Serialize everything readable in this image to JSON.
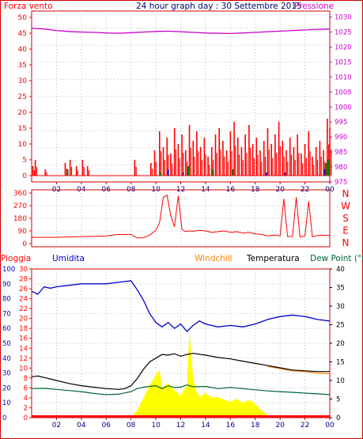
{
  "title": "24 hour graph day : 30 Settembre 2015",
  "colors": {
    "wind": "#ff0000",
    "gust_green": "#008000",
    "gust_blue": "#0000cc",
    "pressure": "#cc00cc",
    "rain": "#ff0000",
    "humidity": "#0000cc",
    "windchill": "#ff8000",
    "temperature": "#000000",
    "dewpoint": "#006633",
    "rain_fill": "#ffff00",
    "border": "#cc0000"
  },
  "x_ticks": [
    "02",
    "04",
    "06",
    "08",
    "10",
    "12",
    "14",
    "16",
    "18",
    "20",
    "22",
    "00"
  ],
  "chart_data": [
    {
      "type": "line",
      "labels": {
        "left": "Forza vento",
        "right": "Pressione"
      },
      "yleft": {
        "ticks": [
          "0",
          "5",
          "10",
          "15",
          "20",
          "25",
          "30",
          "35",
          "40",
          "45",
          "50"
        ],
        "range": [
          0,
          50
        ]
      },
      "yright": {
        "ticks": [
          "975",
          "980",
          "985",
          "990",
          "995",
          "1000",
          "1005",
          "1010",
          "1015",
          "1020",
          "1025",
          "1030"
        ],
        "range": [
          975,
          1032
        ]
      },
      "x_range_hours": [
        0,
        24
      ],
      "series": {
        "pressure": [
          [
            0,
            1026.3
          ],
          [
            1,
            1026.0
          ],
          [
            2,
            1025.5
          ],
          [
            3,
            1025.2
          ],
          [
            4,
            1025.0
          ],
          [
            5,
            1024.9
          ],
          [
            6,
            1024.7
          ],
          [
            7,
            1024.6
          ],
          [
            8,
            1024.8
          ],
          [
            9,
            1025.0
          ],
          [
            10,
            1025.2
          ],
          [
            11,
            1025.3
          ],
          [
            12,
            1025.1
          ],
          [
            13,
            1024.9
          ],
          [
            14,
            1024.7
          ],
          [
            15,
            1024.6
          ],
          [
            16,
            1024.5
          ],
          [
            17,
            1024.7
          ],
          [
            18,
            1024.9
          ],
          [
            19,
            1025.1
          ],
          [
            20,
            1025.3
          ],
          [
            21,
            1025.5
          ],
          [
            22,
            1025.7
          ],
          [
            23,
            1025.9
          ],
          [
            24,
            1026.0
          ]
        ],
        "wind_spikes": [
          [
            0.1,
            3
          ],
          [
            0.3,
            5
          ],
          [
            1.1,
            2
          ],
          [
            2.7,
            4
          ],
          [
            3.1,
            5
          ],
          [
            3.6,
            3
          ],
          [
            4.1,
            5
          ],
          [
            4.5,
            3
          ],
          [
            8.3,
            5
          ],
          [
            9.6,
            4
          ],
          [
            9.9,
            8
          ],
          [
            10.3,
            14
          ],
          [
            10.6,
            9
          ],
          [
            10.9,
            12
          ],
          [
            11.2,
            7
          ],
          [
            11.5,
            15
          ],
          [
            11.8,
            10
          ],
          [
            12.1,
            13
          ],
          [
            12.4,
            8
          ],
          [
            12.7,
            16
          ],
          [
            13.0,
            11
          ],
          [
            13.3,
            14
          ],
          [
            13.6,
            9
          ],
          [
            13.9,
            12
          ],
          [
            14.2,
            6
          ],
          [
            14.5,
            9
          ],
          [
            14.8,
            13
          ],
          [
            15.1,
            15
          ],
          [
            15.4,
            11
          ],
          [
            15.7,
            8
          ],
          [
            16.0,
            14
          ],
          [
            16.3,
            17
          ],
          [
            16.6,
            12
          ],
          [
            16.9,
            9
          ],
          [
            17.2,
            13
          ],
          [
            17.5,
            16
          ],
          [
            17.8,
            10
          ],
          [
            18.1,
            12
          ],
          [
            18.4,
            8
          ],
          [
            18.7,
            11
          ],
          [
            19.0,
            15
          ],
          [
            19.3,
            10
          ],
          [
            19.6,
            13
          ],
          [
            19.9,
            17
          ],
          [
            20.2,
            11
          ],
          [
            20.5,
            8
          ],
          [
            20.8,
            12
          ],
          [
            21.1,
            9
          ],
          [
            21.4,
            13
          ],
          [
            21.7,
            7
          ],
          [
            22.0,
            10
          ],
          [
            22.3,
            14
          ],
          [
            22.6,
            6
          ],
          [
            22.9,
            9
          ],
          [
            23.2,
            11
          ],
          [
            23.5,
            8
          ],
          [
            23.8,
            18
          ],
          [
            24.0,
            15
          ]
        ],
        "gust_green": [
          [
            2.9,
            2
          ],
          [
            10.4,
            1
          ],
          [
            12.6,
            3
          ],
          [
            14.6,
            2
          ],
          [
            16.2,
            2
          ],
          [
            23.7,
            4
          ],
          [
            23.9,
            5
          ]
        ],
        "gust_blue": [
          [
            11.0,
            2
          ],
          [
            12.2,
            1
          ],
          [
            18.9,
            1
          ],
          [
            20.4,
            1
          ],
          [
            23.6,
            2
          ]
        ]
      }
    },
    {
      "type": "line",
      "labels": {
        "directions": [
          "N",
          "W",
          "S",
          "E",
          "N"
        ]
      },
      "yleft": {
        "ticks": [
          "0",
          "90",
          "180",
          "270",
          "360"
        ],
        "range": [
          0,
          360
        ]
      },
      "x_range_hours": [
        0,
        24
      ],
      "series": {
        "direction": [
          [
            0,
            45
          ],
          [
            1,
            45
          ],
          [
            2,
            45
          ],
          [
            3,
            48
          ],
          [
            4,
            50
          ],
          [
            5,
            52
          ],
          [
            6,
            55
          ],
          [
            7,
            65
          ],
          [
            8,
            65
          ],
          [
            8.5,
            40
          ],
          [
            9,
            42
          ],
          [
            9.5,
            60
          ],
          [
            10,
            95
          ],
          [
            10.3,
            150
          ],
          [
            10.6,
            330
          ],
          [
            10.9,
            345
          ],
          [
            11.2,
            200
          ],
          [
            11.5,
            120
          ],
          [
            11.8,
            340
          ],
          [
            12.1,
            100
          ],
          [
            12.4,
            85
          ],
          [
            12.7,
            90
          ],
          [
            13,
            88
          ],
          [
            13.5,
            95
          ],
          [
            14,
            90
          ],
          [
            14.5,
            80
          ],
          [
            15,
            85
          ],
          [
            15.5,
            90
          ],
          [
            16,
            80
          ],
          [
            16.5,
            85
          ],
          [
            17,
            75
          ],
          [
            17.5,
            80
          ],
          [
            18,
            70
          ],
          [
            18.5,
            65
          ],
          [
            19,
            55
          ],
          [
            19.5,
            60
          ],
          [
            20,
            55
          ],
          [
            20.3,
            320
          ],
          [
            20.6,
            50
          ],
          [
            21,
            52
          ],
          [
            21.3,
            330
          ],
          [
            21.6,
            48
          ],
          [
            22,
            55
          ],
          [
            22.3,
            300
          ],
          [
            22.6,
            50
          ],
          [
            23,
            58
          ],
          [
            23.5,
            60
          ],
          [
            24,
            58
          ]
        ]
      }
    },
    {
      "type": "area",
      "labels": {
        "rain": "Pioggia",
        "humidity": "Umidita",
        "windchill": "Windchill",
        "temperature": "Temperatura",
        "dewpoint": "Dew Point (°C"
      },
      "y_humidity": {
        "ticks": [
          "0",
          "10",
          "20",
          "30",
          "40",
          "50",
          "60",
          "70",
          "80",
          "90",
          "100"
        ],
        "range": [
          0,
          100
        ]
      },
      "y_rain": {
        "ticks": [
          "0",
          "2",
          "4",
          "6",
          "8",
          "10",
          "12",
          "14",
          "16",
          "18",
          "20",
          "22",
          "24",
          "26",
          "28",
          "30"
        ],
        "range": [
          0,
          30
        ]
      },
      "y_temp": {
        "ticks": [
          "0",
          "5",
          "10",
          "15",
          "20",
          "25",
          "30",
          "35",
          "40"
        ],
        "range": [
          0,
          40
        ]
      },
      "x_range_hours": [
        0,
        24
      ],
      "series": {
        "humidity": [
          [
            0,
            85
          ],
          [
            0.5,
            83
          ],
          [
            1,
            88
          ],
          [
            1.5,
            87
          ],
          [
            2,
            88
          ],
          [
            3,
            89
          ],
          [
            4,
            90
          ],
          [
            5,
            90
          ],
          [
            6,
            90
          ],
          [
            7,
            91
          ],
          [
            8,
            92
          ],
          [
            8.5,
            86
          ],
          [
            9,
            79
          ],
          [
            9.5,
            70
          ],
          [
            10,
            64
          ],
          [
            10.5,
            61
          ],
          [
            11,
            64
          ],
          [
            11.5,
            60
          ],
          [
            12,
            63
          ],
          [
            12.5,
            58
          ],
          [
            13,
            62
          ],
          [
            13.5,
            65
          ],
          [
            14,
            63
          ],
          [
            15,
            61
          ],
          [
            16,
            62
          ],
          [
            17,
            61
          ],
          [
            18,
            63
          ],
          [
            19,
            66
          ],
          [
            20,
            68
          ],
          [
            21,
            69
          ],
          [
            22,
            68
          ],
          [
            23,
            66
          ],
          [
            24,
            65
          ]
        ],
        "temperature": [
          [
            0,
            11
          ],
          [
            0.5,
            11.2
          ],
          [
            1,
            10.8
          ],
          [
            2,
            10
          ],
          [
            3,
            9.2
          ],
          [
            4,
            8.6
          ],
          [
            5,
            8.2
          ],
          [
            6,
            7.8
          ],
          [
            7,
            7.6
          ],
          [
            7.5,
            7.8
          ],
          [
            8,
            8.6
          ],
          [
            8.5,
            10.5
          ],
          [
            9,
            13
          ],
          [
            9.5,
            15
          ],
          [
            10,
            16
          ],
          [
            10.5,
            17
          ],
          [
            11,
            16.8
          ],
          [
            11.5,
            17.2
          ],
          [
            12,
            16.5
          ],
          [
            12.5,
            17
          ],
          [
            13,
            17.3
          ],
          [
            14,
            16.8
          ],
          [
            15,
            16.2
          ],
          [
            16,
            15.8
          ],
          [
            17,
            15.2
          ],
          [
            18,
            14.6
          ],
          [
            19,
            14
          ],
          [
            20,
            13.4
          ],
          [
            21,
            12.8
          ],
          [
            22,
            12.6
          ],
          [
            23,
            12.4
          ],
          [
            24,
            12.4
          ]
        ],
        "windchill": [
          [
            19,
            13.8
          ],
          [
            20,
            13.2
          ],
          [
            21,
            12.6
          ],
          [
            22,
            12.4
          ],
          [
            23,
            12.0
          ],
          [
            24,
            11.8
          ]
        ],
        "dewpoint": [
          [
            0,
            7.8
          ],
          [
            1,
            7.9
          ],
          [
            2,
            7.6
          ],
          [
            3,
            7.3
          ],
          [
            4,
            7.0
          ],
          [
            5,
            6.5
          ],
          [
            6,
            6.2
          ],
          [
            7,
            6.3
          ],
          [
            8,
            7
          ],
          [
            8.5,
            7.8
          ],
          [
            9,
            8.2
          ],
          [
            9.5,
            8.4
          ],
          [
            10,
            8.6
          ],
          [
            10.5,
            7.8
          ],
          [
            11,
            8.6
          ],
          [
            11.5,
            8.1
          ],
          [
            12,
            8.2
          ],
          [
            12.5,
            8.8
          ],
          [
            13,
            8.3
          ],
          [
            14,
            8.4
          ],
          [
            15,
            7.8
          ],
          [
            16,
            8.1
          ],
          [
            17,
            7.8
          ],
          [
            18,
            7.5
          ],
          [
            19,
            7.2
          ],
          [
            20,
            7
          ],
          [
            21,
            6.8
          ],
          [
            22,
            6.6
          ],
          [
            23,
            6.4
          ],
          [
            24,
            6.2
          ]
        ],
        "rain_fill": [
          [
            8,
            0
          ],
          [
            8.5,
            1.5
          ],
          [
            9,
            4
          ],
          [
            9.5,
            6.5
          ],
          [
            10,
            8.6
          ],
          [
            10.3,
            9.6
          ],
          [
            10.5,
            6
          ],
          [
            11,
            7
          ],
          [
            11.5,
            5.5
          ],
          [
            12,
            4.5
          ],
          [
            12.5,
            6.5
          ],
          [
            12.7,
            17.5
          ],
          [
            13,
            8
          ],
          [
            13.3,
            5
          ],
          [
            13.6,
            4.2
          ],
          [
            14,
            5
          ],
          [
            14.5,
            4
          ],
          [
            15,
            4.2
          ],
          [
            15.5,
            3.6
          ],
          [
            16,
            3.2
          ],
          [
            16.5,
            3.8
          ],
          [
            17,
            3
          ],
          [
            17.5,
            3.6
          ],
          [
            18,
            2.8
          ],
          [
            18.5,
            1.5
          ],
          [
            19,
            0.5
          ],
          [
            19.2,
            0
          ]
        ],
        "rain_line": [
          [
            0,
            0
          ],
          [
            24,
            0
          ]
        ]
      }
    }
  ]
}
